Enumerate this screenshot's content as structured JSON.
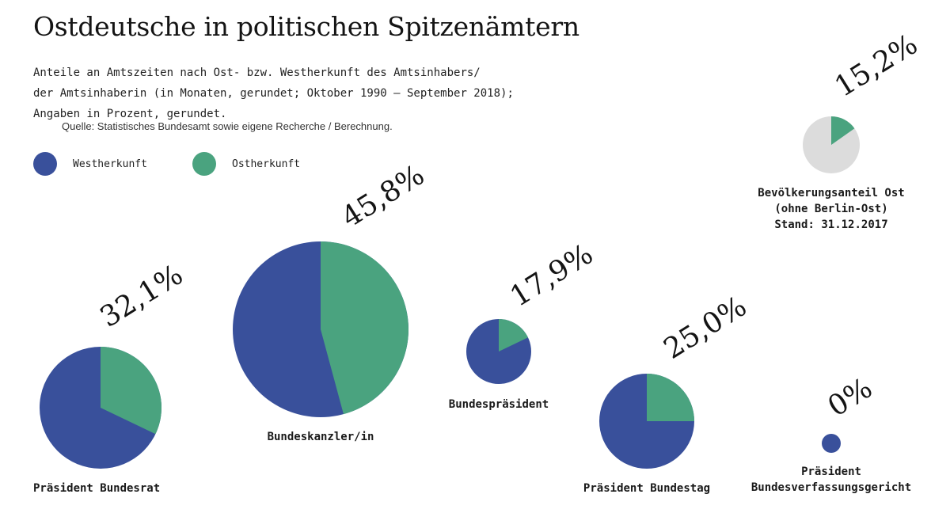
{
  "title": "Ostdeutsche in politischen Spitzenämtern",
  "subtitle_lines": [
    "Anteile an Amtszeiten nach Ost- bzw. Westherkunft des Amtsinhabers/",
    "der Amtsinhaberin (in Monaten, gerundet; Oktober 1990 – September 2018);",
    "Angaben in Prozent, gerundet."
  ],
  "source": "Quelle: Statistisches Bundesamt sowie eigene Recherche / Berechnung.",
  "colors": {
    "west": "#39509b",
    "ost": "#4aa37f",
    "population_rest": "#dcdcdc"
  },
  "legend": [
    {
      "label": "Westherkunft",
      "color": "#39509b"
    },
    {
      "label": "Ostherkunft",
      "color": "#4aa37f"
    }
  ],
  "chart_data": {
    "type": "pie",
    "unit": "%",
    "series": [
      {
        "name": "Westherkunft"
      },
      {
        "name": "Ostherkunft"
      }
    ],
    "pies": [
      {
        "label_lines": [
          "Präsident Bundesrat"
        ],
        "ost_share": 32.1,
        "ost_label": "32,1%",
        "reference": false
      },
      {
        "label_lines": [
          "Bundeskanzler/in"
        ],
        "ost_share": 45.8,
        "ost_label": "45,8%",
        "reference": false
      },
      {
        "label_lines": [
          "Bundespräsident"
        ],
        "ost_share": 17.9,
        "ost_label": "17,9%",
        "reference": false
      },
      {
        "label_lines": [
          "Präsident Bundestag"
        ],
        "ost_share": 25.0,
        "ost_label": "25,0%",
        "reference": false
      },
      {
        "label_lines": [
          "Präsident",
          "Bundesverfassungsgericht"
        ],
        "ost_share": 0,
        "ost_label": "0%",
        "reference": false
      },
      {
        "label_lines": [
          "Bevölkerungsanteil Ost",
          "(ohne Berlin-Ost)",
          "Stand: 31.12.2017"
        ],
        "ost_share": 15.2,
        "ost_label": "15,2%",
        "reference": true
      }
    ]
  }
}
